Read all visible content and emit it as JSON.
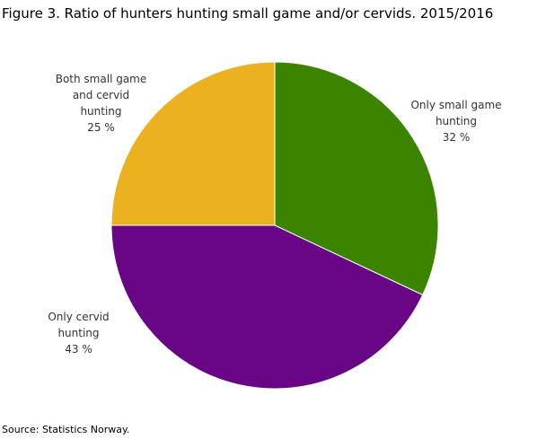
{
  "chart_data": {
    "type": "pie",
    "title": "Figure 3. Ratio of hunters hunting small game and/or cervids. 2015/2016",
    "source": "Source: Statistics Norway.",
    "slices": [
      {
        "label": "Only small game hunting",
        "value": 32,
        "value_label": "32 %",
        "color": "#3c8400"
      },
      {
        "label": "Only cervid hunting",
        "value": 43,
        "value_label": "43 %",
        "color": "#680686"
      },
      {
        "label": "Both small game and cervid hunting",
        "value": 25,
        "value_label": "25 %",
        "color": "#ebb11f"
      }
    ]
  }
}
